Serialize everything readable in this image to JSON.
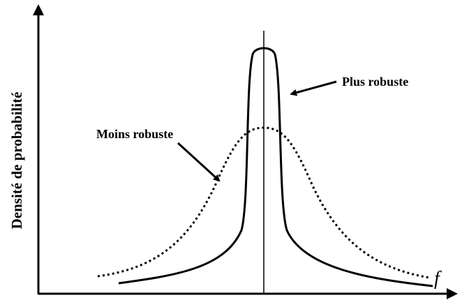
{
  "y_axis_label": "Densité de probabilité",
  "x_axis_label": "f",
  "annotations": [
    {
      "label": "Plus robuste"
    },
    {
      "label": "Moins robuste"
    }
  ]
}
